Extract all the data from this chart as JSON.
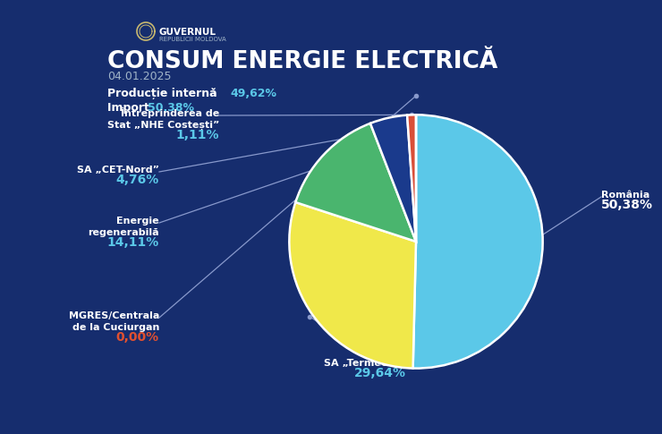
{
  "title": "CONSUM ENERGIE ELECTRICĂ",
  "subtitle": "04.01.2025",
  "background_color": "#162d6e",
  "prod_interna_label": "Producție internă",
  "prod_interna_pct": "49,62%",
  "import_label": "Import",
  "import_pct": "50,38%",
  "values": [
    50.38,
    29.64,
    14.11,
    4.76,
    1.11,
    0.0
  ],
  "colors": [
    "#5bc8e8",
    "#f0e84a",
    "#4ab56e",
    "#1a3a8c",
    "#d94f38",
    "#162d6e"
  ],
  "slice_pcts": [
    "50,38%",
    "29,64%",
    "14,11%",
    "4,76%",
    "1,11%",
    "0,00%"
  ],
  "slice_pct_colors": [
    "#5bc8e8",
    "#5bc8e8",
    "#5bc8e8",
    "#5bc8e8",
    "#5bc8e8",
    "#e05030"
  ],
  "highlight_color": "#5bc8e8"
}
